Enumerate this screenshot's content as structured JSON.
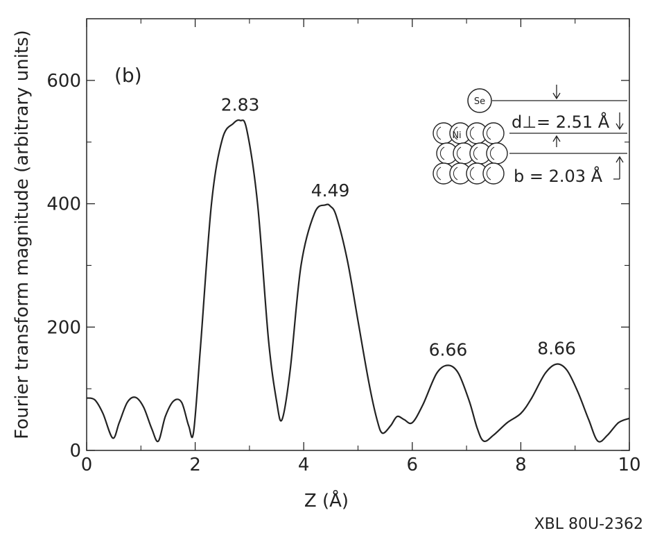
{
  "chart_data": {
    "type": "line",
    "panel_label": "(b)",
    "xlabel": "Z (Å)",
    "ylabel": "Fourier transform magnitude (arbitrary units)",
    "xlim": [
      0,
      10
    ],
    "ylim": [
      0,
      700
    ],
    "x_ticks": [
      0,
      2,
      4,
      6,
      8,
      10
    ],
    "x_tick_labels": [
      "0",
      "2",
      "4",
      "6",
      "8",
      "10"
    ],
    "y_ticks": [
      0,
      200,
      400,
      600
    ],
    "y_tick_labels": [
      "0",
      "200",
      "400",
      "600"
    ],
    "grid": false,
    "series": [
      {
        "x": [
          0,
          0.15,
          0.3,
          0.48,
          0.6,
          0.75,
          0.9,
          1.05,
          1.2,
          1.32,
          1.45,
          1.6,
          1.75,
          1.88,
          1.97,
          2.1,
          2.3,
          2.5,
          2.7,
          2.83,
          2.95,
          3.15,
          3.35,
          3.5,
          3.6,
          3.75,
          3.95,
          4.2,
          4.4,
          4.49,
          4.6,
          4.8,
          5.0,
          5.2,
          5.35,
          5.45,
          5.6,
          5.72,
          5.85,
          6.0,
          6.2,
          6.45,
          6.66,
          6.85,
          7.05,
          7.2,
          7.32,
          7.5,
          7.75,
          8.0,
          8.2,
          8.45,
          8.66,
          8.85,
          9.05,
          9.25,
          9.42,
          9.6,
          9.8,
          10.0
        ],
        "y": [
          85,
          82,
          60,
          20,
          45,
          78,
          86,
          70,
          35,
          15,
          55,
          80,
          78,
          40,
          30,
          170,
          400,
          505,
          530,
          535,
          520,
          400,
          180,
          80,
          50,
          130,
          300,
          385,
          398,
          396,
          380,
          310,
          210,
          110,
          50,
          28,
          40,
          55,
          50,
          45,
          75,
          125,
          138,
          125,
          80,
          35,
          15,
          25,
          45,
          60,
          85,
          125,
          140,
          130,
          95,
          50,
          15,
          25,
          45,
          52
        ]
      }
    ],
    "annotations": [
      "2.83",
      "4.49",
      "6.66",
      "8.66"
    ],
    "inset": {
      "atom_top": "Se",
      "atom_layer": "Ni",
      "d_perp_symbol": "d⊥",
      "d_perp_value": "= 2.51 Å",
      "b_label": "b = 2.03 Å"
    }
  },
  "reference_code": "XBL 80U-2362"
}
